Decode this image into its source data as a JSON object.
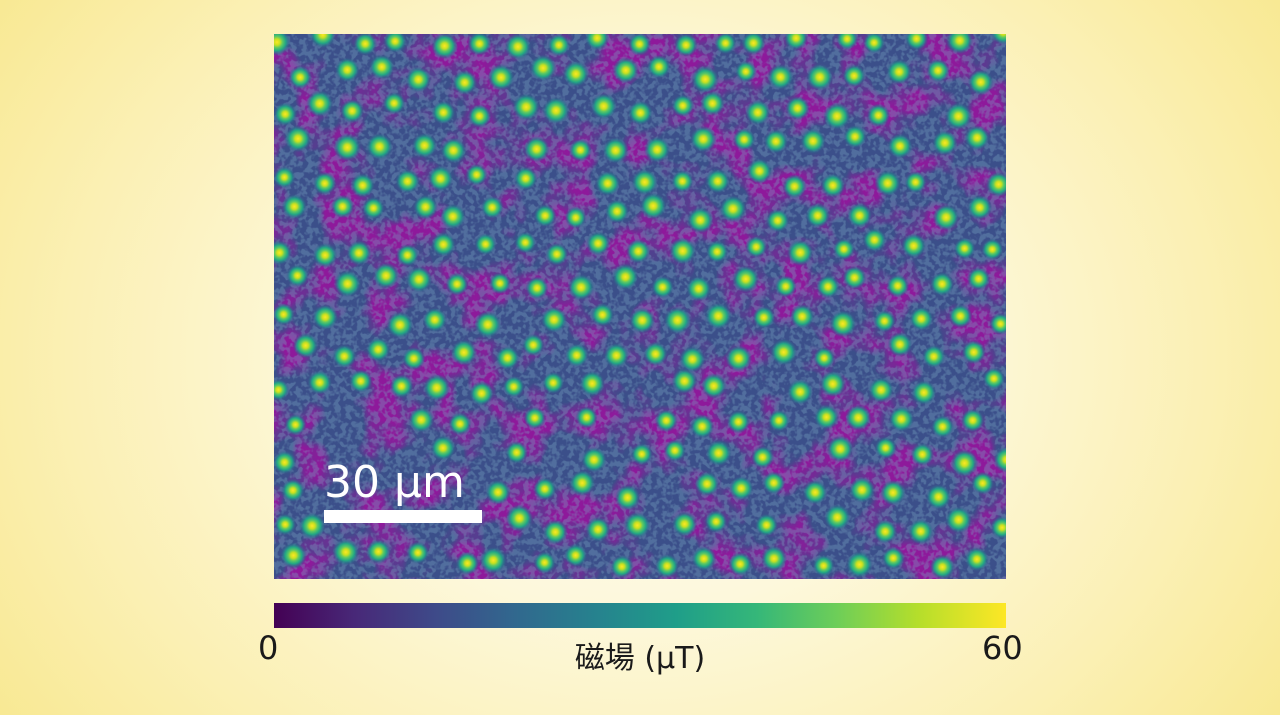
{
  "image": {
    "description_name": "magnetic-field-map",
    "colormap": "viridis",
    "colors": {
      "low": "#440154",
      "high": "#fde725",
      "background": "#fbf0b4"
    }
  },
  "scale_bar": {
    "label": "30 μm"
  },
  "colorbar": {
    "min_label": "0",
    "max_label": "60",
    "title": "磁場 (μT)"
  }
}
